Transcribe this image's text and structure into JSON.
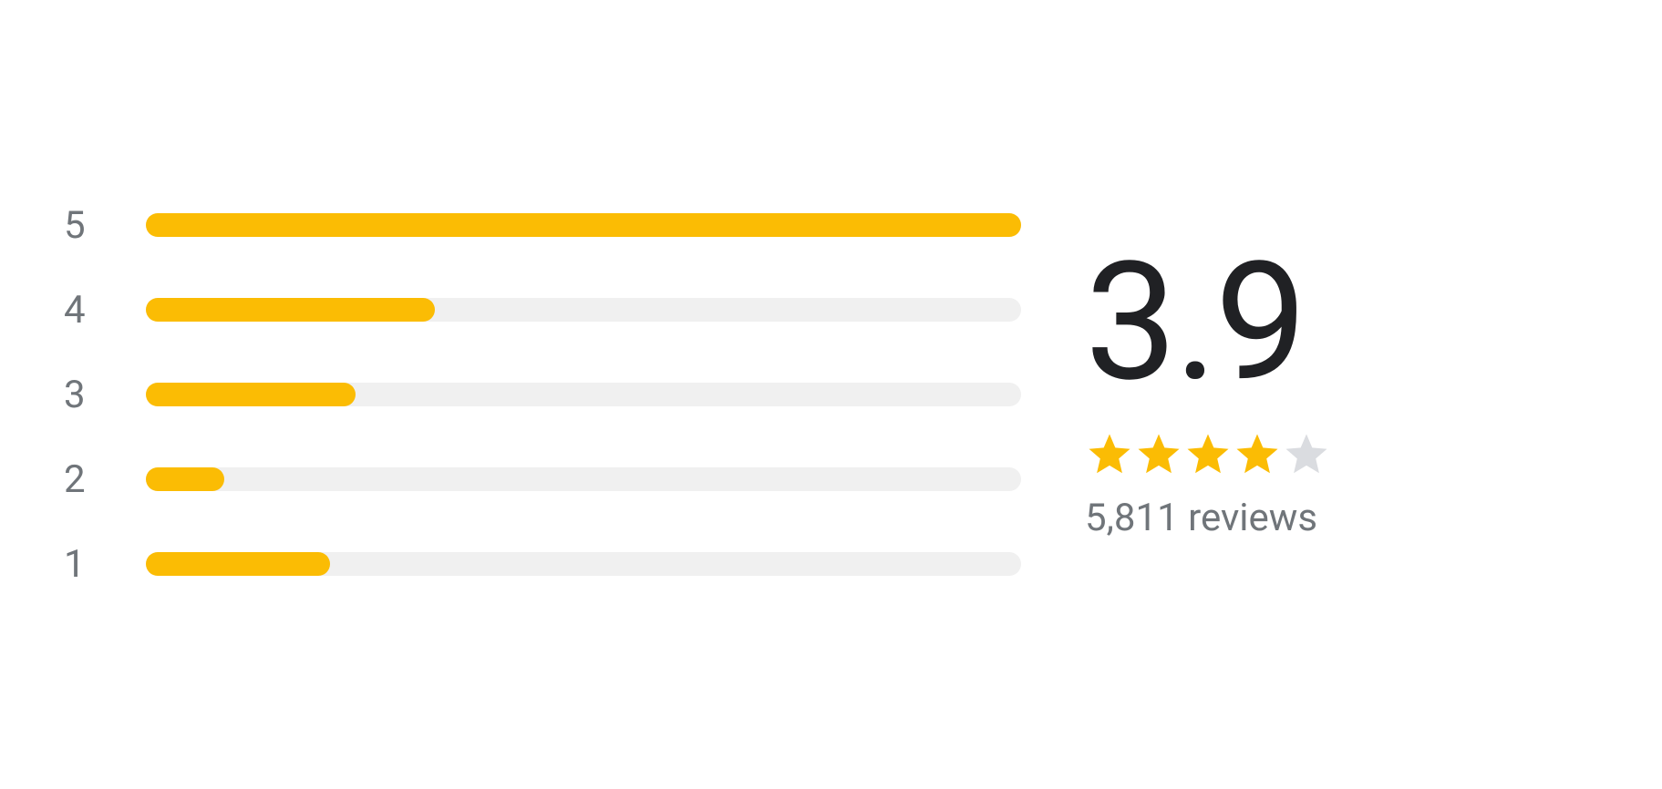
{
  "colors": {
    "bar_track": "#f0f0f0",
    "bar_fill": "#fbbc04",
    "label_text": "#70757a",
    "avg_text": "#202124",
    "star_filled": "#fbbc04",
    "star_empty": "#dadce0",
    "reviews_text": "#70757a"
  },
  "distribution": [
    {
      "label": "5",
      "percent": 100
    },
    {
      "label": "4",
      "percent": 33
    },
    {
      "label": "3",
      "percent": 24
    },
    {
      "label": "2",
      "percent": 9
    },
    {
      "label": "1",
      "percent": 21
    }
  ],
  "summary": {
    "average": "3.9",
    "stars_filled": 4,
    "stars_total": 5,
    "reviews_text": "5,811 reviews"
  }
}
